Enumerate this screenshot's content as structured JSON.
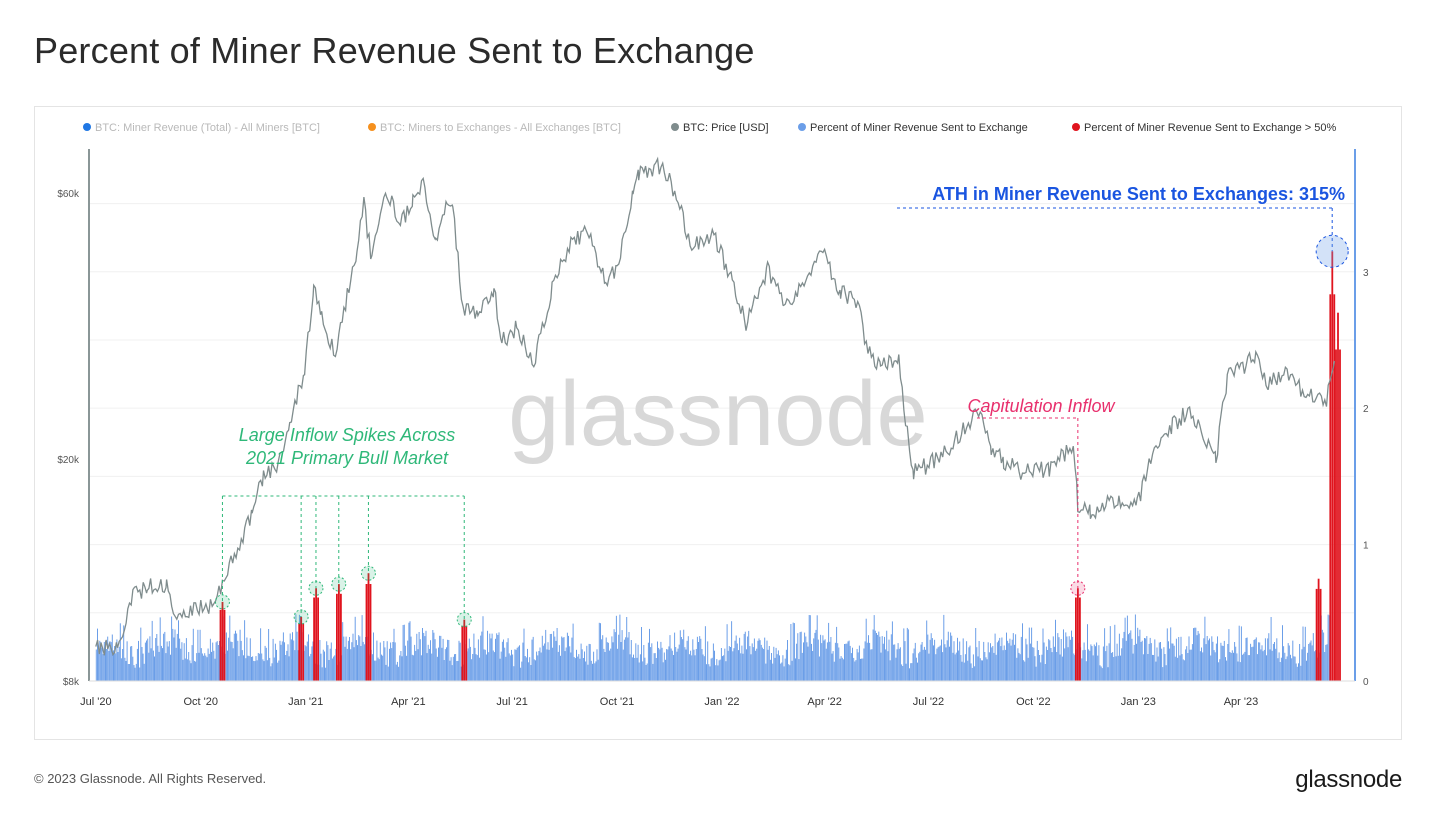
{
  "title": "Percent of Miner Revenue Sent to Exchange",
  "footer": {
    "copyright": "© 2023 Glassnode. All Rights Reserved.",
    "logo": "glassnode"
  },
  "watermark": "glassnode",
  "chart_data": {
    "type": "line",
    "legend_placement": "top",
    "legend": [
      {
        "label": "BTC: Miner Revenue (Total) - All Miners [BTC]",
        "color": "#1f77e4",
        "active": false
      },
      {
        "label": "BTC: Miners to Exchanges - All Exchanges [BTC]",
        "color": "#f5901e",
        "active": false
      },
      {
        "label": "BTC: Price [USD]",
        "color": "#7f8c8d",
        "active": true
      },
      {
        "label": "Percent of Miner Revenue Sent to Exchange",
        "color": "#6b9ee8",
        "active": true
      },
      {
        "label": "Percent of Miner Revenue Sent to Exchange > 50%",
        "color": "#e0141e",
        "active": true
      }
    ],
    "x_axis": {
      "range": [
        "2020-06-25",
        "2023-07-10"
      ],
      "ticks": [
        {
          "date": "2020-07-01",
          "label": "Jul '20"
        },
        {
          "date": "2020-10-01",
          "label": "Oct '20"
        },
        {
          "date": "2021-01-01",
          "label": "Jan '21"
        },
        {
          "date": "2021-04-01",
          "label": "Apr '21"
        },
        {
          "date": "2021-07-01",
          "label": "Jul '21"
        },
        {
          "date": "2021-10-01",
          "label": "Oct '21"
        },
        {
          "date": "2022-01-01",
          "label": "Jan '22"
        },
        {
          "date": "2022-04-01",
          "label": "Apr '22"
        },
        {
          "date": "2022-07-01",
          "label": "Jul '22"
        },
        {
          "date": "2022-10-01",
          "label": "Oct '22"
        },
        {
          "date": "2023-01-01",
          "label": "Jan '23"
        },
        {
          "date": "2023-04-01",
          "label": "Apr '23"
        }
      ]
    },
    "y_left": {
      "scale": "log",
      "range": [
        8000,
        72000
      ],
      "ticks": [
        {
          "value": 8000,
          "label": "$8k"
        },
        {
          "value": 20000,
          "label": "$20k"
        },
        {
          "value": 60000,
          "label": "$60k"
        }
      ]
    },
    "y_right": {
      "range": [
        0,
        3.9
      ],
      "ticks": [
        {
          "value": 0,
          "label": "0"
        },
        {
          "value": 1,
          "label": "1"
        },
        {
          "value": 2,
          "label": "2"
        },
        {
          "value": 3,
          "label": "3"
        }
      ]
    },
    "price_series": {
      "name": "BTC: Price [USD]",
      "color": "#7f8c8d",
      "points": [
        [
          "2020-07-01",
          9150
        ],
        [
          "2020-07-20",
          9200
        ],
        [
          "2020-08-01",
          11300
        ],
        [
          "2020-08-15",
          11800
        ],
        [
          "2020-09-01",
          11900
        ],
        [
          "2020-09-10",
          10300
        ],
        [
          "2020-09-25",
          10700
        ],
        [
          "2020-10-08",
          10900
        ],
        [
          "2020-10-20",
          11900
        ],
        [
          "2020-11-01",
          13700
        ],
        [
          "2020-11-15",
          16000
        ],
        [
          "2020-11-25",
          18800
        ],
        [
          "2020-12-05",
          19200
        ],
        [
          "2020-12-18",
          23000
        ],
        [
          "2020-12-31",
          29000
        ],
        [
          "2021-01-08",
          40500
        ],
        [
          "2021-01-15",
          36500
        ],
        [
          "2021-01-27",
          30500
        ],
        [
          "2021-02-05",
          38000
        ],
        [
          "2021-02-15",
          47500
        ],
        [
          "2021-02-21",
          57000
        ],
        [
          "2021-02-28",
          45500
        ],
        [
          "2021-03-13",
          61000
        ],
        [
          "2021-03-25",
          52500
        ],
        [
          "2021-04-05",
          58500
        ],
        [
          "2021-04-14",
          63500
        ],
        [
          "2021-04-25",
          49500
        ],
        [
          "2021-05-05",
          57500
        ],
        [
          "2021-05-10",
          56000
        ],
        [
          "2021-05-19",
          37000
        ],
        [
          "2021-06-01",
          36500
        ],
        [
          "2021-06-15",
          40500
        ],
        [
          "2021-06-22",
          32500
        ],
        [
          "2021-07-05",
          34500
        ],
        [
          "2021-07-20",
          29800
        ],
        [
          "2021-08-05",
          40500
        ],
        [
          "2021-08-20",
          48500
        ],
        [
          "2021-09-05",
          51500
        ],
        [
          "2021-09-21",
          41500
        ],
        [
          "2021-10-01",
          44000
        ],
        [
          "2021-10-15",
          60500
        ],
        [
          "2021-10-20",
          65000
        ],
        [
          "2021-11-10",
          67500
        ],
        [
          "2021-11-25",
          57500
        ],
        [
          "2021-12-04",
          48000
        ],
        [
          "2021-12-25",
          50500
        ],
        [
          "2022-01-10",
          41500
        ],
        [
          "2022-01-22",
          35000
        ],
        [
          "2022-02-10",
          44000
        ],
        [
          "2022-02-24",
          38000
        ],
        [
          "2022-03-05",
          39000
        ],
        [
          "2022-03-29",
          47500
        ],
        [
          "2022-04-15",
          40000
        ],
        [
          "2022-04-30",
          38000
        ],
        [
          "2022-05-09",
          31000
        ],
        [
          "2022-05-20",
          29500
        ],
        [
          "2022-06-05",
          30000
        ],
        [
          "2022-06-13",
          22000
        ],
        [
          "2022-06-18",
          19000
        ],
        [
          "2022-06-30",
          19500
        ],
        [
          "2022-07-15",
          20500
        ],
        [
          "2022-08-14",
          24400
        ],
        [
          "2022-08-25",
          21000
        ],
        [
          "2022-09-05",
          19800
        ],
        [
          "2022-09-20",
          19000
        ],
        [
          "2022-10-15",
          19200
        ],
        [
          "2022-11-05",
          21200
        ],
        [
          "2022-11-09",
          16500
        ],
        [
          "2022-11-20",
          16000
        ],
        [
          "2022-12-15",
          17000
        ],
        [
          "2022-12-31",
          16500
        ],
        [
          "2023-01-15",
          21000
        ],
        [
          "2023-01-31",
          23000
        ],
        [
          "2023-02-15",
          24500
        ],
        [
          "2023-03-10",
          20000
        ],
        [
          "2023-03-20",
          28000
        ],
        [
          "2023-04-14",
          30500
        ],
        [
          "2023-04-25",
          27500
        ],
        [
          "2023-05-10",
          28500
        ],
        [
          "2023-05-25",
          26500
        ],
        [
          "2023-06-15",
          25500
        ],
        [
          "2023-06-22",
          30000
        ]
      ]
    },
    "percent_series": {
      "name": "Percent of Miner Revenue Sent to Exchange",
      "color": "#6b9ee8",
      "baseline": 0.25,
      "range": [
        "2020-07-01",
        "2023-06-18"
      ]
    },
    "spike_series": {
      "name": "Percent of Miner Revenue Sent to Exchange > 50%",
      "color": "#e0141e",
      "spikes": [
        {
          "date": "2020-10-20",
          "value": 0.58
        },
        {
          "date": "2020-12-28",
          "value": 0.47
        },
        {
          "date": "2021-01-10",
          "value": 0.68
        },
        {
          "date": "2021-01-30",
          "value": 0.71
        },
        {
          "date": "2021-02-25",
          "value": 0.79
        },
        {
          "date": "2021-05-20",
          "value": 0.45
        },
        {
          "date": "2022-11-09",
          "value": 0.68
        },
        {
          "date": "2023-06-08",
          "value": 0.75
        },
        {
          "date": "2023-06-20",
          "value": 3.15
        },
        {
          "date": "2023-06-25",
          "value": 2.7
        }
      ]
    },
    "annotations": {
      "bull_market": {
        "text": [
          "Large Inflow Spikes Across",
          "2021 Primary Bull Market"
        ],
        "color": "#2fb879"
      },
      "capitulation": {
        "text": "Capitulation Inflow",
        "color": "#e8306d"
      },
      "ath": {
        "text": "ATH in Miner Revenue Sent to Exchanges: 315%",
        "color": "#1a55e0"
      }
    }
  }
}
